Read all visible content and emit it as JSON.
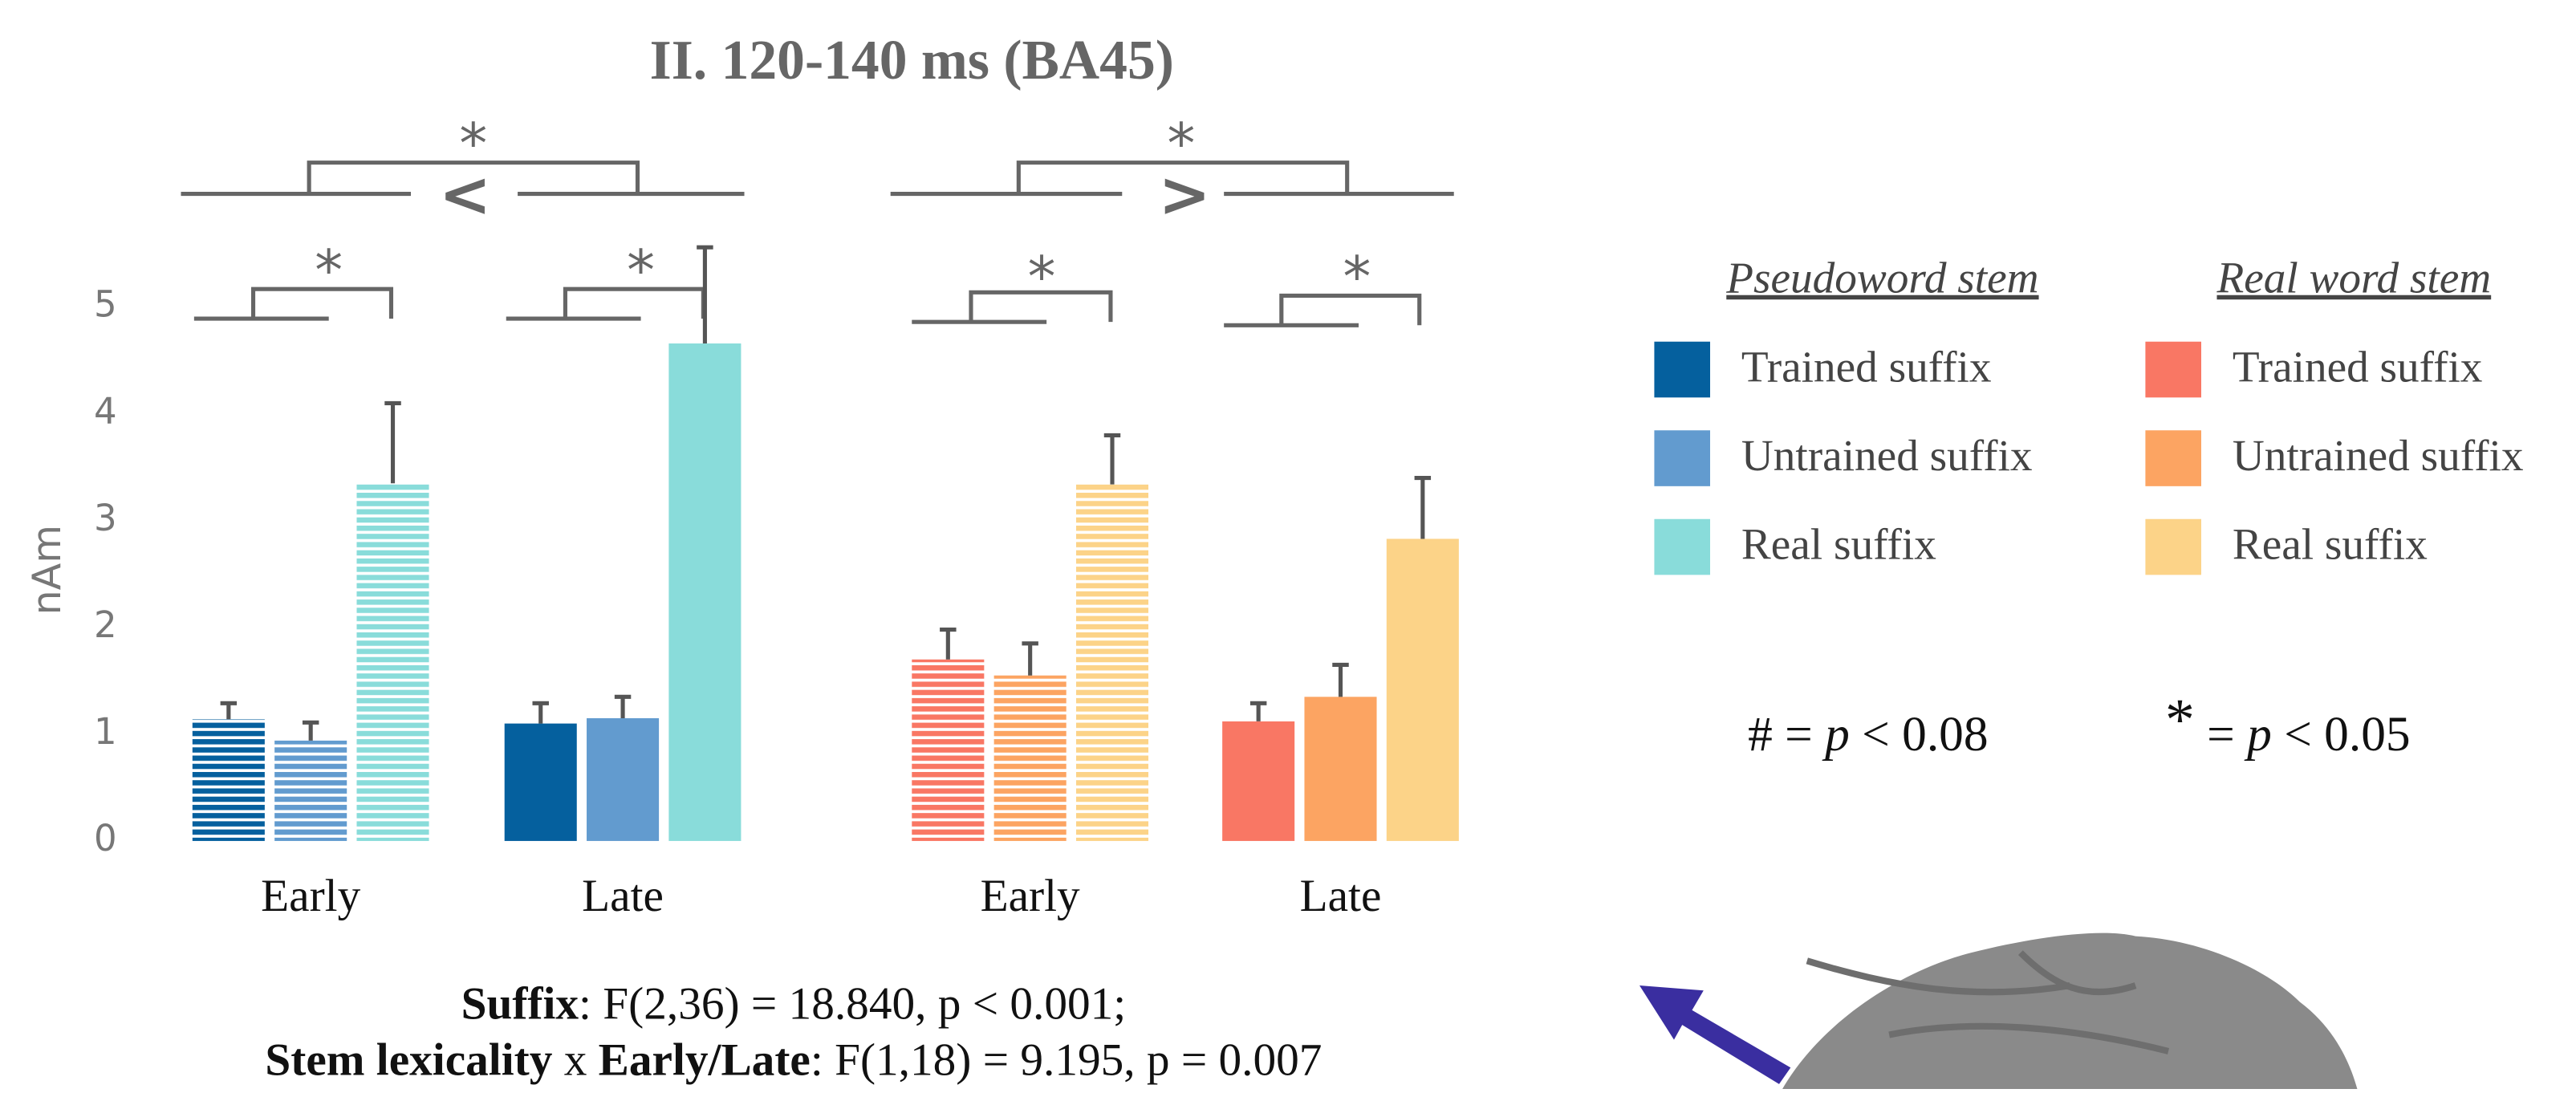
{
  "chart_data": {
    "type": "bar",
    "title": "II. 120-140 ms (BA45)",
    "y_label": "nAm",
    "categories": [
      "Early",
      "Late",
      "Early",
      "Late"
    ],
    "striped": [
      true,
      false,
      true,
      false
    ],
    "ylim": [
      0,
      5.6
    ],
    "yticks": [
      0,
      1,
      2,
      3,
      4,
      5
    ],
    "stem_groups": [
      "Pseudoword stem",
      "Real word stem"
    ],
    "series": [
      {
        "name": "Trained suffix",
        "color": "#05609e",
        "values": [
          1.14,
          1.1,
          null,
          null
        ],
        "errors": [
          0.15,
          0.19,
          null,
          null
        ]
      },
      {
        "name": "Untrained suffix",
        "color": "#629bcf",
        "values": [
          0.94,
          1.15,
          null,
          null
        ],
        "errors": [
          0.17,
          0.2,
          null,
          null
        ]
      },
      {
        "name": "Real suffix",
        "color": "#89dcda",
        "values": [
          3.35,
          4.66,
          null,
          null
        ],
        "errors": [
          0.75,
          0.9,
          null,
          null
        ]
      },
      {
        "name": "Trained suffix",
        "color": "#f97764",
        "values": [
          null,
          null,
          1.7,
          1.12
        ],
        "errors": [
          null,
          null,
          0.28,
          0.17
        ]
      },
      {
        "name": "Untrained suffix",
        "color": "#fca462",
        "values": [
          null,
          null,
          1.55,
          1.35
        ],
        "errors": [
          null,
          null,
          0.3,
          0.3
        ]
      },
      {
        "name": "Real suffix",
        "color": "#fcd388",
        "values": [
          null,
          null,
          3.34,
          2.83
        ],
        "errors": [
          null,
          null,
          0.46,
          0.57
        ]
      }
    ],
    "significance": [
      "*",
      "*",
      "*",
      "*",
      "*",
      "*"
    ],
    "comparisons": [
      "<",
      ">"
    ],
    "notes": [
      [
        "#",
        " = ",
        "p",
        " < 0.08"
      ],
      [
        "*",
        " = ",
        "p",
        " < 0.05"
      ]
    ],
    "stats": [
      [
        {
          "text": "Suffix",
          "bold": true
        },
        {
          "text": ": F(2,36) = 18.840, p < 0.001;",
          "bold": false
        }
      ],
      [
        {
          "text": "Stem lexicality",
          "bold": true
        },
        {
          "text": " x ",
          "bold": false
        },
        {
          "text": "Early/Late",
          "bold": true
        },
        {
          "text": ": F(1,18) = 9.195, p = 0.007",
          "bold": false
        }
      ]
    ]
  }
}
